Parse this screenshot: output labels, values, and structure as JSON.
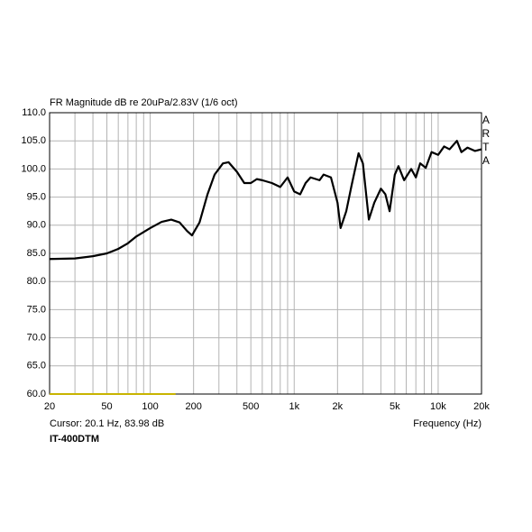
{
  "chart_data": {
    "type": "line",
    "title": "FR Magnitude dB re 20uPa/2.83V (1/6 oct)",
    "watermark": "ARTA",
    "xlabel": "Frequency (Hz)",
    "cursor": "Cursor: 20.1 Hz, 83.98 dB",
    "model": "IT-400DTM",
    "log_x": true,
    "grid": true,
    "xlim": [
      20,
      20000
    ],
    "ylim": [
      60,
      110
    ],
    "xticks": [
      20,
      50,
      100,
      200,
      500,
      {
        "value": 1000,
        "label": "1k"
      },
      {
        "value": 2000,
        "label": "2k"
      },
      {
        "value": 5000,
        "label": "5k"
      },
      {
        "value": 10000,
        "label": "10k"
      },
      {
        "value": 20000,
        "label": "20k"
      }
    ],
    "x_minor_grid": [
      30,
      40,
      60,
      70,
      80,
      90,
      300,
      400,
      600,
      700,
      800,
      900,
      3000,
      4000,
      6000,
      7000,
      8000,
      9000
    ],
    "yticks": [
      {
        "value": 60,
        "label": "60.0"
      },
      {
        "value": 65,
        "label": "65.0"
      },
      {
        "value": 70,
        "label": "70.0"
      },
      {
        "value": 75,
        "label": "75.0"
      },
      {
        "value": 80,
        "label": "80.0"
      },
      {
        "value": 85,
        "label": "85.0"
      },
      {
        "value": 90,
        "label": "90.0"
      },
      {
        "value": 95,
        "label": "95.0"
      },
      {
        "value": 100,
        "label": "100.0"
      },
      {
        "value": 105,
        "label": "105.0"
      },
      {
        "value": 110,
        "label": "110.0"
      }
    ],
    "series": [
      {
        "color": "#000000",
        "x": [
          20,
          30,
          40,
          50,
          60,
          70,
          80,
          100,
          120,
          140,
          160,
          180,
          195,
          220,
          250,
          280,
          320,
          350,
          400,
          450,
          500,
          550,
          600,
          700,
          800,
          900,
          1000,
          1100,
          1200,
          1300,
          1500,
          1600,
          1800,
          2000,
          2100,
          2300,
          2500,
          2800,
          3000,
          3300,
          3600,
          4000,
          4300,
          4600,
          5000,
          5300,
          5800,
          6500,
          7000,
          7500,
          8200,
          9000,
          10000,
          11000,
          12000,
          13500,
          14500,
          16000,
          18000,
          20000
        ],
        "values": [
          84.0,
          84.1,
          84.5,
          85.0,
          85.8,
          86.8,
          88.0,
          89.5,
          90.6,
          91.0,
          90.5,
          89.0,
          88.2,
          90.5,
          95.5,
          99.0,
          101.0,
          101.2,
          99.5,
          97.5,
          97.5,
          98.2,
          98.0,
          97.5,
          96.8,
          98.5,
          96.0,
          95.5,
          97.5,
          98.5,
          98.0,
          99.0,
          98.5,
          94.0,
          89.5,
          92.5,
          97.0,
          102.8,
          101.0,
          91.0,
          94.0,
          96.5,
          95.5,
          92.5,
          99.0,
          100.5,
          98.0,
          100.0,
          98.5,
          101.0,
          100.2,
          103.0,
          102.5,
          104.0,
          103.5,
          105.0,
          103.0,
          103.8,
          103.2,
          103.5
        ]
      },
      {
        "color": "#c8b400",
        "x": [
          20,
          150
        ],
        "values": [
          60,
          60
        ]
      }
    ]
  }
}
